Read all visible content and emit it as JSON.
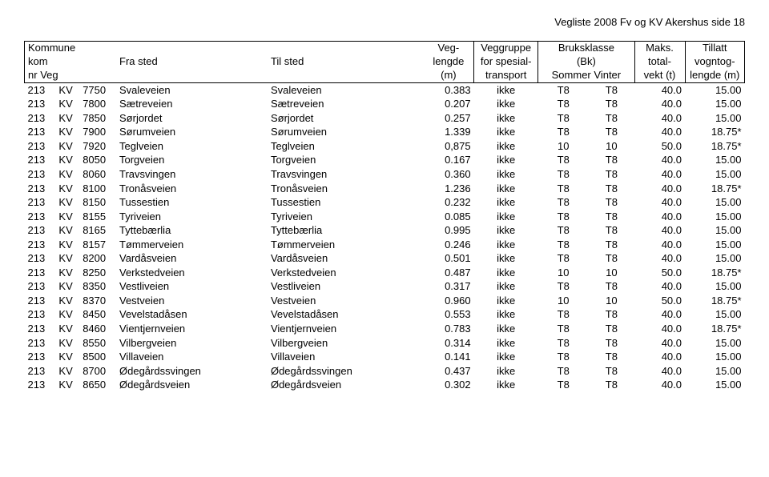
{
  "page_title": "Vegliste 2008 Fv og KV Akershus   side 18",
  "header": {
    "kommune": "Kommune",
    "kom": "kom",
    "nr": "nr",
    "veg": "Veg",
    "fra": "Fra sted",
    "til": "Til sted",
    "veg_l1": "Veg-",
    "veg_l2": "lengde",
    "veg_l3": "(m)",
    "grp_l1": "Veggruppe",
    "grp_l2": "for spesial-",
    "grp_l3": "transport",
    "bk_l1": "Bruksklasse",
    "bk_l2": "(Bk)",
    "bk_l3a": "Sommer",
    "bk_l3b": "Vinter",
    "maks_l1": "Maks.",
    "maks_l2": "total-",
    "maks_l3": "vekt (t)",
    "till_l1": "Tillatt",
    "till_l2": "vogntog-",
    "till_l3": "lengde (m)"
  },
  "rows": [
    {
      "kom": "213",
      "nr": "KV",
      "veg": "7750",
      "fra": "Svaleveien",
      "til": "Svaleveien",
      "len": "0.383",
      "grp": "ikke",
      "bk1": "T8",
      "bk2": "T8",
      "vekt": "40.0",
      "till": "15.00"
    },
    {
      "kom": "213",
      "nr": "KV",
      "veg": "7800",
      "fra": "Sætreveien",
      "til": "Sætreveien",
      "len": "0.207",
      "grp": "ikke",
      "bk1": "T8",
      "bk2": "T8",
      "vekt": "40.0",
      "till": "15.00"
    },
    {
      "kom": "213",
      "nr": "KV",
      "veg": "7850",
      "fra": "Sørjordet",
      "til": "Sørjordet",
      "len": "0.257",
      "grp": "ikke",
      "bk1": "T8",
      "bk2": "T8",
      "vekt": "40.0",
      "till": "15.00"
    },
    {
      "kom": "213",
      "nr": "KV",
      "veg": "7900",
      "fra": "Sørumveien",
      "til": "Sørumveien",
      "len": "1.339",
      "grp": "ikke",
      "bk1": "T8",
      "bk2": "T8",
      "vekt": "40.0",
      "till": "18.75*"
    },
    {
      "kom": "213",
      "nr": "KV",
      "veg": "7920",
      "fra": "Teglveien",
      "til": "Teglveien",
      "len": "0,875",
      "grp": "ikke",
      "bk1": "10",
      "bk2": "10",
      "vekt": "50.0",
      "till": "18.75*"
    },
    {
      "kom": "213",
      "nr": "KV",
      "veg": "8050",
      "fra": "Torgveien",
      "til": "Torgveien",
      "len": "0.167",
      "grp": "ikke",
      "bk1": "T8",
      "bk2": "T8",
      "vekt": "40.0",
      "till": "15.00"
    },
    {
      "kom": "213",
      "nr": "KV",
      "veg": "8060",
      "fra": "Travsvingen",
      "til": "Travsvingen",
      "len": "0.360",
      "grp": "ikke",
      "bk1": "T8",
      "bk2": "T8",
      "vekt": "40.0",
      "till": "15.00"
    },
    {
      "kom": "213",
      "nr": "KV",
      "veg": "8100",
      "fra": "Tronåsveien",
      "til": "Tronåsveien",
      "len": "1.236",
      "grp": "ikke",
      "bk1": "T8",
      "bk2": "T8",
      "vekt": "40.0",
      "till": "18.75*"
    },
    {
      "kom": "213",
      "nr": "KV",
      "veg": "8150",
      "fra": "Tussestien",
      "til": "Tussestien",
      "len": "0.232",
      "grp": "ikke",
      "bk1": "T8",
      "bk2": "T8",
      "vekt": "40.0",
      "till": "15.00"
    },
    {
      "kom": "213",
      "nr": "KV",
      "veg": "8155",
      "fra": "Tyriveien",
      "til": "Tyriveien",
      "len": "0.085",
      "grp": "ikke",
      "bk1": "T8",
      "bk2": "T8",
      "vekt": "40.0",
      "till": "15.00"
    },
    {
      "kom": "213",
      "nr": "KV",
      "veg": "8165",
      "fra": "Tyttebærlia",
      "til": "Tyttebærlia",
      "len": "0.995",
      "grp": "ikke",
      "bk1": "T8",
      "bk2": "T8",
      "vekt": "40.0",
      "till": "15.00"
    },
    {
      "kom": "213",
      "nr": "KV",
      "veg": "8157",
      "fra": "Tømmerveien",
      "til": "Tømmerveien",
      "len": "0.246",
      "grp": "ikke",
      "bk1": "T8",
      "bk2": "T8",
      "vekt": "40.0",
      "till": "15.00"
    },
    {
      "kom": "213",
      "nr": "KV",
      "veg": "8200",
      "fra": "Vardåsveien",
      "til": "Vardåsveien",
      "len": "0.501",
      "grp": "ikke",
      "bk1": "T8",
      "bk2": "T8",
      "vekt": "40.0",
      "till": "15.00"
    },
    {
      "kom": "213",
      "nr": "KV",
      "veg": "8250",
      "fra": "Verkstedveien",
      "til": "Verkstedveien",
      "len": "0.487",
      "grp": "ikke",
      "bk1": "10",
      "bk2": "10",
      "vekt": "50.0",
      "till": "18.75*"
    },
    {
      "kom": "213",
      "nr": "KV",
      "veg": "8350",
      "fra": "Vestliveien",
      "til": "Vestliveien",
      "len": "0.317",
      "grp": "ikke",
      "bk1": "T8",
      "bk2": "T8",
      "vekt": "40.0",
      "till": "15.00"
    },
    {
      "kom": "213",
      "nr": "KV",
      "veg": "8370",
      "fra": "Vestveien",
      "til": "Vestveien",
      "len": "0.960",
      "grp": "ikke",
      "bk1": "10",
      "bk2": "10",
      "vekt": "50.0",
      "till": "18.75*"
    },
    {
      "kom": "213",
      "nr": "KV",
      "veg": "8450",
      "fra": "Vevelstadåsen",
      "til": "Vevelstadåsen",
      "len": "0.553",
      "grp": "ikke",
      "bk1": "T8",
      "bk2": "T8",
      "vekt": "40.0",
      "till": "15.00"
    },
    {
      "kom": "213",
      "nr": "KV",
      "veg": "8460",
      "fra": "Vientjernveien",
      "til": "Vientjernveien",
      "len": "0.783",
      "grp": "ikke",
      "bk1": "T8",
      "bk2": "T8",
      "vekt": "40.0",
      "till": "18.75*"
    },
    {
      "kom": "213",
      "nr": "KV",
      "veg": "8550",
      "fra": "Vilbergveien",
      "til": "Vilbergveien",
      "len": "0.314",
      "grp": "ikke",
      "bk1": "T8",
      "bk2": "T8",
      "vekt": "40.0",
      "till": "15.00"
    },
    {
      "kom": "213",
      "nr": "KV",
      "veg": "8500",
      "fra": "Villaveien",
      "til": "Villaveien",
      "len": "0.141",
      "grp": "ikke",
      "bk1": "T8",
      "bk2": "T8",
      "vekt": "40.0",
      "till": "15.00"
    },
    {
      "kom": "213",
      "nr": "KV",
      "veg": "8700",
      "fra": "Ødegårdssvingen",
      "til": "Ødegårdssvingen",
      "len": "0.437",
      "grp": "ikke",
      "bk1": "T8",
      "bk2": "T8",
      "vekt": "40.0",
      "till": "15.00"
    },
    {
      "kom": "213",
      "nr": "KV",
      "veg": "8650",
      "fra": "Ødegårdsveien",
      "til": "Ødegårdsveien",
      "len": "0.302",
      "grp": "ikke",
      "bk1": "T8",
      "bk2": "T8",
      "vekt": "40.0",
      "till": "15.00"
    }
  ]
}
